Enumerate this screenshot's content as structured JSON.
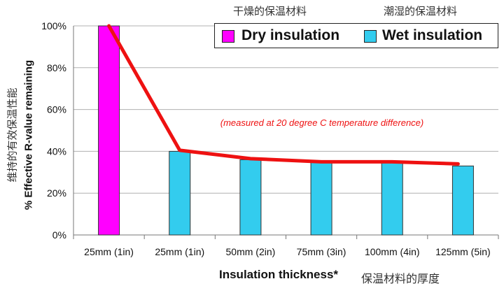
{
  "header": {
    "dry_cn": "干燥的保温材料",
    "wet_cn": "潮湿的保温材料"
  },
  "legend": {
    "dry_label": "Dry insulation",
    "wet_label": "Wet insulation"
  },
  "axis_titles": {
    "ylabel": "% Effective R-value remaining",
    "ylabel_cn": "维持的有效保温性能",
    "xlabel": "Insulation thickness*",
    "xlabel_cn": "保温材料的厚度"
  },
  "colors": {
    "dry": "#ff00ff",
    "wet": "#33ccee",
    "line": "#ee1111",
    "note": "#ee1111",
    "grid": "#b0b0b0"
  },
  "chart_data": {
    "type": "bar",
    "title": "",
    "xlabel": "Insulation thickness*",
    "ylabel": "% Effective R-value remaining",
    "categories": [
      "25mm (1in)",
      "25mm (1in)",
      "50mm (2in)",
      "75mm (3in)",
      "100mm (4in)",
      "125mm (5in)"
    ],
    "values": [
      100,
      40,
      36,
      35,
      35,
      33
    ],
    "bar_series": [
      "Dry insulation",
      "Wet insulation",
      "Wet insulation",
      "Wet insulation",
      "Wet insulation",
      "Wet insulation"
    ],
    "series": [
      {
        "name": "Dry insulation",
        "values": [
          100,
          null,
          null,
          null,
          null,
          null
        ]
      },
      {
        "name": "Wet insulation",
        "values": [
          null,
          40,
          36,
          35,
          35,
          33
        ]
      }
    ],
    "trend_line": [
      100,
      40.5,
      36.5,
      35,
      35,
      34
    ],
    "yticks": [
      "0%",
      "20%",
      "40%",
      "60%",
      "80%",
      "100%"
    ],
    "ylim": [
      0,
      100
    ],
    "grid": true,
    "legend": "top-right",
    "annotation": "(measured at 20 degree C temperature difference)"
  }
}
